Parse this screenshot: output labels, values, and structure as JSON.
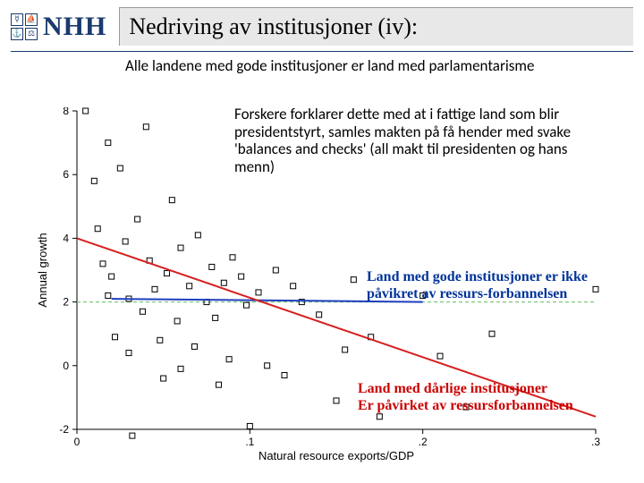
{
  "header": {
    "logo_text": "NHH",
    "title": "Nedriving av institusjoner (iv):"
  },
  "paragraphs": {
    "p1": "Alle landene med gode institusjoner er land med parlamentarisme",
    "p2": "Forskere forklarer dette med at i fattige land som blir presidentstyrt, samles makten på få hender med svake 'balances and checks' (all makt til presidenten og hans menn)"
  },
  "annotations": {
    "good": "Land med gode institusjoner er ikke påvikret av ressurs-forbannelsen",
    "bad_l1": "Land med dårlige institusjoner",
    "bad_l2": "Er påvirket av ressursforbannelsen"
  },
  "chart": {
    "type": "scatter",
    "xlabel": "Natural resource exports/GDP",
    "ylabel": "Annual growth",
    "xlim": [
      0,
      0.3
    ],
    "ylim": [
      -2,
      8
    ],
    "xticks": [
      0,
      0.1,
      0.2,
      0.3
    ],
    "xtick_labels": [
      "0",
      ".1",
      ".2",
      ".3"
    ],
    "yticks": [
      -2,
      0,
      2,
      4,
      6,
      8
    ],
    "plot_bg": "#ffffff",
    "axis_color": "#000000",
    "marker_style": "hollow-square",
    "marker_size": 6,
    "marker_color": "#000000",
    "points": [
      [
        0.005,
        8.0
      ],
      [
        0.01,
        5.8
      ],
      [
        0.012,
        4.3
      ],
      [
        0.015,
        3.2
      ],
      [
        0.018,
        2.2
      ],
      [
        0.018,
        7.0
      ],
      [
        0.02,
        2.8
      ],
      [
        0.022,
        0.9
      ],
      [
        0.025,
        6.2
      ],
      [
        0.028,
        3.9
      ],
      [
        0.03,
        2.1
      ],
      [
        0.03,
        0.4
      ],
      [
        0.032,
        -2.2
      ],
      [
        0.035,
        4.6
      ],
      [
        0.038,
        1.7
      ],
      [
        0.04,
        7.5
      ],
      [
        0.042,
        3.3
      ],
      [
        0.045,
        2.4
      ],
      [
        0.048,
        0.8
      ],
      [
        0.05,
        -0.4
      ],
      [
        0.052,
        2.9
      ],
      [
        0.055,
        5.2
      ],
      [
        0.058,
        1.4
      ],
      [
        0.06,
        3.7
      ],
      [
        0.06,
        -0.1
      ],
      [
        0.065,
        2.5
      ],
      [
        0.068,
        0.6
      ],
      [
        0.07,
        4.1
      ],
      [
        0.075,
        2.0
      ],
      [
        0.078,
        3.1
      ],
      [
        0.08,
        1.5
      ],
      [
        0.082,
        -0.6
      ],
      [
        0.085,
        2.6
      ],
      [
        0.088,
        0.2
      ],
      [
        0.09,
        3.4
      ],
      [
        0.095,
        2.8
      ],
      [
        0.098,
        1.9
      ],
      [
        0.1,
        -1.9
      ],
      [
        0.105,
        2.3
      ],
      [
        0.11,
        0.0
      ],
      [
        0.115,
        3.0
      ],
      [
        0.12,
        -0.3
      ],
      [
        0.125,
        2.5
      ],
      [
        0.13,
        2.0
      ],
      [
        0.14,
        1.6
      ],
      [
        0.15,
        -1.1
      ],
      [
        0.155,
        0.5
      ],
      [
        0.16,
        2.7
      ],
      [
        0.17,
        0.9
      ],
      [
        0.175,
        -1.6
      ],
      [
        0.2,
        2.2
      ],
      [
        0.21,
        0.3
      ],
      [
        0.225,
        -1.3
      ],
      [
        0.24,
        1.0
      ],
      [
        0.3,
        2.4
      ]
    ],
    "lines": [
      {
        "name": "zero-ref",
        "color": "#7fc97f",
        "dash": "4,3",
        "width": 1.2,
        "x1": 0,
        "y1": 2.0,
        "x2": 0.3,
        "y2": 2.0
      },
      {
        "name": "good-institutions",
        "color": "#1f3fbf",
        "dash": null,
        "width": 2.0,
        "x1": 0.02,
        "y1": 2.1,
        "x2": 0.2,
        "y2": 2.0
      },
      {
        "name": "bad-institutions",
        "color": "#d62020",
        "dash": null,
        "width": 2.0,
        "x1": 0.0,
        "y1": 4.0,
        "x2": 0.3,
        "y2": -1.6
      }
    ],
    "label_fontsize": 13,
    "tick_fontsize": 12
  }
}
